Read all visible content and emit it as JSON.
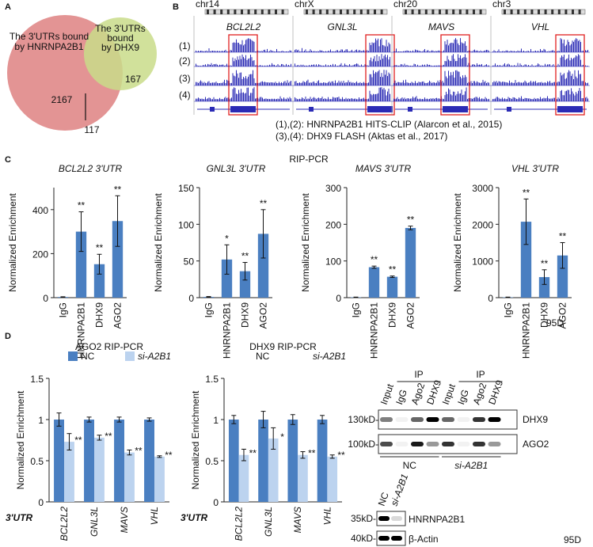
{
  "panels": [
    "A",
    "B",
    "C",
    "D"
  ],
  "venn": {
    "left_label": [
      "The 3'UTRs bound",
      "by HNRNPA2B1"
    ],
    "right_label": [
      "The 3'UTRs",
      "bound",
      "by DHX9"
    ],
    "left_only": 2167,
    "right_only": 167,
    "overlap": 117
  },
  "tracks": {
    "chromosomes": [
      "chr14",
      "chrX",
      "chr20",
      "chr3"
    ],
    "genes": [
      "BCL2L2",
      "GNL3L",
      "MAVS",
      "VHL"
    ],
    "track_labels": [
      "(1)",
      "(2)",
      "(3)",
      "(4)"
    ],
    "legend": [
      "(1),(2): HNRNPA2B1 HITS-CLIP (Alarcon et al., 2015)",
      "(3),(4): DHX9 FLASH  (Aktas et al., 2017)"
    ]
  },
  "rip_title": "RIP-PCR",
  "cell_line": "95D",
  "chart_data": [
    {
      "type": "bar",
      "title": "BCL2L2 3'UTR",
      "title_italic": true,
      "ylabel": "Normalized Enrichment",
      "categories": [
        "IgG",
        "HNRNPA2B1",
        "DHX9",
        "AGO2"
      ],
      "values": [
        3,
        300,
        152,
        348
      ],
      "errors": [
        1,
        90,
        45,
        115
      ],
      "annotations": [
        null,
        "**",
        "**",
        "**"
      ],
      "color": "#4a7fc1",
      "ylim": [
        0,
        500
      ],
      "yticks": [
        0,
        200,
        400
      ]
    },
    {
      "type": "bar",
      "title": "GNL3L 3'UTR",
      "title_italic": true,
      "ylabel": "Normalized Enrichment",
      "categories": [
        "IgG",
        "HNRNPA2B1",
        "DHX9",
        "AGO2"
      ],
      "values": [
        1,
        52,
        36,
        87
      ],
      "errors": [
        0.5,
        20,
        12,
        33
      ],
      "annotations": [
        null,
        "*",
        "**",
        "**"
      ],
      "color": "#4a7fc1",
      "ylim": [
        0,
        150
      ],
      "yticks": [
        0,
        50,
        100,
        150
      ]
    },
    {
      "type": "bar",
      "title": "MAVS 3'UTR",
      "title_italic": true,
      "ylabel": "Normalized Enrichment",
      "categories": [
        "IgG",
        "HNRNPA2B1",
        "DHX9",
        "AGO2"
      ],
      "values": [
        1,
        83,
        57,
        190
      ],
      "errors": [
        0.5,
        3,
        2,
        5
      ],
      "annotations": [
        null,
        "**",
        "**",
        "**"
      ],
      "color": "#4a7fc1",
      "ylim": [
        0,
        300
      ],
      "yticks": [
        0,
        100,
        200,
        300
      ]
    },
    {
      "type": "bar",
      "title": "VHL 3'UTR",
      "title_italic": true,
      "ylabel": "Normalized Enrichment",
      "categories": [
        "IgG",
        "HNRNPA2B1",
        "DHX9",
        "AGO2"
      ],
      "values": [
        10,
        2070,
        560,
        1150
      ],
      "errors": [
        5,
        620,
        200,
        350
      ],
      "annotations": [
        null,
        "**",
        "**",
        "**"
      ],
      "color": "#4a7fc1",
      "ylim": [
        0,
        3000
      ],
      "yticks": [
        0,
        1000,
        2000,
        3000
      ]
    },
    {
      "type": "bar",
      "title": "AGO2 RIP-PCR",
      "title_italic": false,
      "ylabel": "Normalized Enrichment",
      "xlabel": "3'UTR",
      "italic_categories": true,
      "legend_swatches": true,
      "categories": [
        "BCL2L2",
        "GNL3L",
        "MAVS",
        "VHL"
      ],
      "ylim": [
        0,
        1.5
      ],
      "yticks": [
        0,
        0.5,
        1,
        1.5
      ],
      "series": [
        {
          "name": "NC",
          "color": "#4a7fc1",
          "values": [
            1,
            1,
            1,
            1
          ],
          "errors": [
            0.08,
            0.03,
            0.03,
            0.02
          ]
        },
        {
          "name": "si-A2B1",
          "color": "#bcd3ef",
          "values": [
            0.73,
            0.78,
            0.6,
            0.55
          ],
          "errors": [
            0.1,
            0.03,
            0.03,
            0.01
          ],
          "annotations": [
            "**",
            "**",
            "**",
            "**"
          ]
        }
      ]
    },
    {
      "type": "bar",
      "title": "DHX9 RIP-PCR",
      "title_italic": false,
      "ylabel": "Normalized Enrichment",
      "xlabel": "3'UTR",
      "italic_categories": true,
      "legend_swatches": false,
      "categories": [
        "BCL2L2",
        "GNL3L",
        "MAVS",
        "VHL"
      ],
      "ylim": [
        0,
        1.5
      ],
      "yticks": [
        0,
        0.5,
        1,
        1.5
      ],
      "series": [
        {
          "name": "NC",
          "color": "#4a7fc1",
          "values": [
            1,
            1,
            1,
            1
          ],
          "errors": [
            0.05,
            0.1,
            0.06,
            0.05
          ]
        },
        {
          "name": "si-A2B1",
          "color": "#bcd3ef",
          "values": [
            0.57,
            0.77,
            0.57,
            0.55
          ],
          "errors": [
            0.07,
            0.13,
            0.04,
            0.02
          ],
          "annotations": [
            "**",
            "*",
            "**",
            "**"
          ]
        }
      ]
    }
  ],
  "blots": {
    "ip_label": "IP",
    "lanes": [
      "Input",
      "IgG",
      "Ago2",
      "DHX9",
      "Input",
      "IgG",
      "Ago2",
      "DHX9"
    ],
    "markers": [
      "130kD-",
      "100kD-"
    ],
    "proteins": [
      "DHX9",
      "AGO2"
    ],
    "groups": [
      "NC",
      "si-A2B1"
    ],
    "lower": {
      "lanes": [
        "NC",
        "si-A2B1"
      ],
      "markers": [
        "35kD-",
        "40kD-"
      ],
      "proteins": [
        "HNRNPA2B1",
        "β-Actin"
      ]
    }
  }
}
